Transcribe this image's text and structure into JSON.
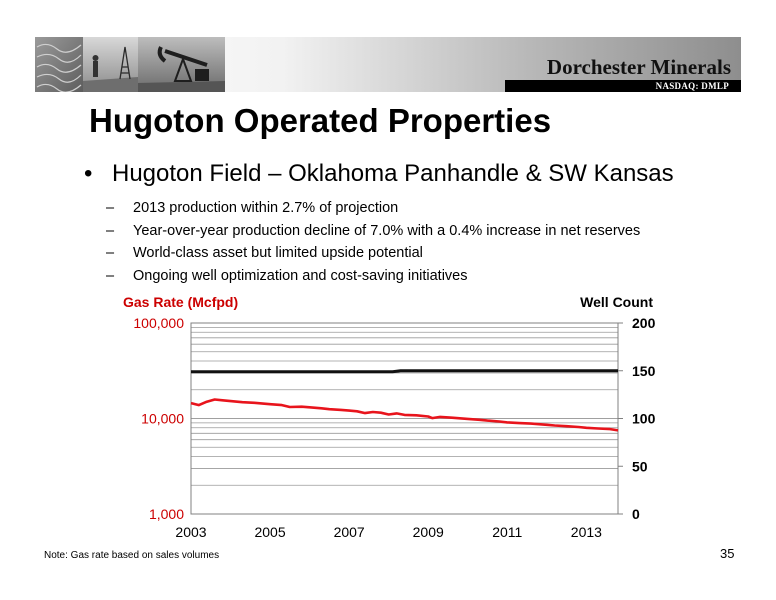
{
  "header": {
    "company": "Dorchester Minerals",
    "ticker": "NASDAQ: DMLP",
    "photos_icon": "oilfield-photo-collage"
  },
  "slide": {
    "title": "Hugoton Operated Properties",
    "bullet": "Hugoton Field – Oklahoma Panhandle & SW Kansas",
    "sub_bullets": [
      "2013 production within 2.7% of projection",
      "Year-over-year production decline of 7.0% with a 0.4% increase in net reserves",
      "World-class asset but limited upside potential",
      "Ongoing well optimization and cost-saving initiatives"
    ],
    "note": "Note: Gas rate based on sales volumes",
    "page_number": "35"
  },
  "chart_data": {
    "type": "line",
    "left_axis_label": "Gas Rate (Mcfpd)",
    "right_axis_label": "Well Count",
    "left_axis_scale": "log",
    "left_ylim": [
      1000,
      100000
    ],
    "left_ticks": [
      "100,000",
      "10,000",
      "1,000"
    ],
    "right_ylim": [
      0,
      200
    ],
    "right_ticks": [
      "200",
      "150",
      "100",
      "50",
      "0"
    ],
    "xlim": [
      2003,
      2013.8
    ],
    "x_ticks": [
      "2003",
      "2005",
      "2007",
      "2009",
      "2011",
      "2013"
    ],
    "grid": true,
    "colors": {
      "gas_rate": "#e8141c",
      "well_count": "#111111",
      "left_axis_label": "#cc0000"
    },
    "series": [
      {
        "axis": "left",
        "color": "#e8141c",
        "x": [
          2003.0,
          2003.2,
          2003.4,
          2003.6,
          2003.8,
          2004.0,
          2004.3,
          2004.6,
          2005.0,
          2005.3,
          2005.5,
          2005.8,
          2006.0,
          2006.3,
          2006.5,
          2006.8,
          2007.0,
          2007.2,
          2007.4,
          2007.6,
          2007.8,
          2008.0,
          2008.2,
          2008.4,
          2008.7,
          2009.0,
          2009.1,
          2009.3,
          2009.6,
          2010.0,
          2010.3,
          2010.5,
          2010.8,
          2011.0,
          2011.3,
          2011.6,
          2012.0,
          2012.2,
          2012.5,
          2012.8,
          2013.0,
          2013.3,
          2013.6,
          2013.8
        ],
        "values": [
          14500,
          13800,
          15000,
          15800,
          15500,
          15200,
          14800,
          14600,
          14100,
          13800,
          13200,
          13300,
          13100,
          12800,
          12500,
          12300,
          12100,
          11900,
          11400,
          11700,
          11500,
          11000,
          11300,
          10900,
          10800,
          10500,
          10100,
          10400,
          10200,
          9900,
          9700,
          9500,
          9300,
          9100,
          8950,
          8850,
          8600,
          8450,
          8300,
          8150,
          8000,
          7850,
          7750,
          7500
        ]
      },
      {
        "axis": "right",
        "color": "#111111",
        "x": [
          2003.0,
          2007.5,
          2008.1,
          2008.3,
          2009.5,
          2011.0,
          2012.5,
          2013.8
        ],
        "values": [
          149,
          149,
          149,
          150,
          150,
          150,
          150,
          150
        ]
      }
    ]
  }
}
